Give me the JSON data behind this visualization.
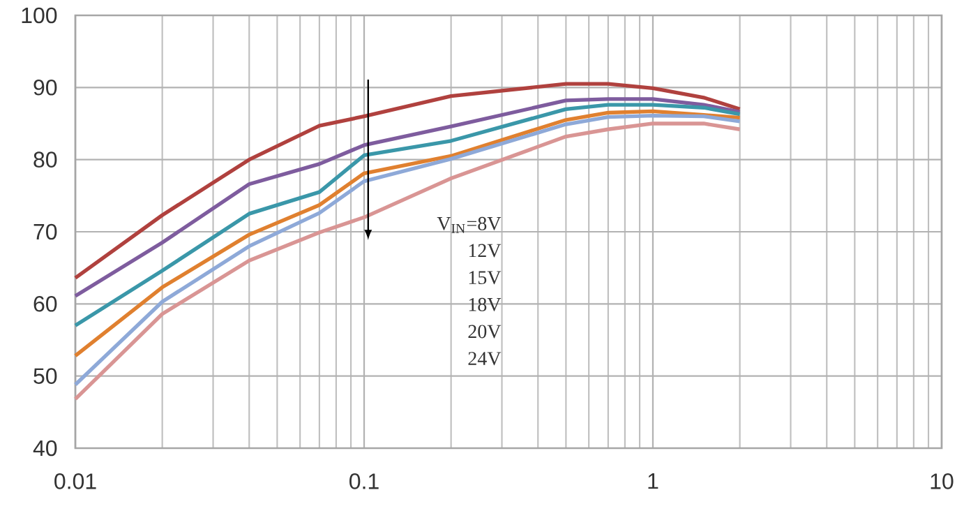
{
  "chart_data": {
    "type": "line",
    "x": [
      0.01,
      0.02,
      0.04,
      0.07,
      0.1,
      0.2,
      0.5,
      0.7,
      1,
      1.5,
      2
    ],
    "series": [
      {
        "color": "#b0413e",
        "values": [
          63.6,
          72.3,
          80,
          84.7,
          86,
          88.8,
          90.5,
          90.5,
          89.9,
          88.6,
          87
        ]
      },
      {
        "color": "#7e5c9e",
        "values": [
          61.1,
          68.5,
          76.6,
          79.4,
          82,
          84.6,
          88.2,
          88.4,
          88.4,
          87.6,
          86.6
        ]
      },
      {
        "color": "#3a97a9",
        "values": [
          57,
          64.6,
          72.5,
          75.5,
          80.6,
          82.6,
          87,
          87.6,
          87.6,
          87.2,
          86.3
        ]
      },
      {
        "color": "#e0802f",
        "values": [
          52.8,
          62.3,
          69.6,
          73.7,
          78.1,
          80.5,
          85.5,
          86.5,
          86.7,
          86.2,
          85.8
        ]
      },
      {
        "color": "#8ea9d8",
        "values": [
          48.8,
          60.3,
          68,
          72.6,
          77,
          80.1,
          84.9,
          85.9,
          86.1,
          86,
          85.3
        ]
      },
      {
        "color": "#d99594",
        "values": [
          46.8,
          58.6,
          66,
          69.9,
          72,
          77.4,
          83.2,
          84.2,
          85,
          85,
          84.2
        ]
      }
    ],
    "annotations": [
      "V$_{IN}$=8V",
      "12V",
      "15V",
      "18V",
      "20V",
      "24V"
    ],
    "log": "x",
    "xlim": [
      0.01,
      10
    ],
    "xticks": [
      0.01,
      0.1,
      1,
      10
    ],
    "ylim": [
      40,
      100
    ],
    "yticks": [
      40,
      50,
      60,
      70,
      80,
      90,
      100
    ],
    "grid": true,
    "marker": "none",
    "line_style": "solid"
  }
}
